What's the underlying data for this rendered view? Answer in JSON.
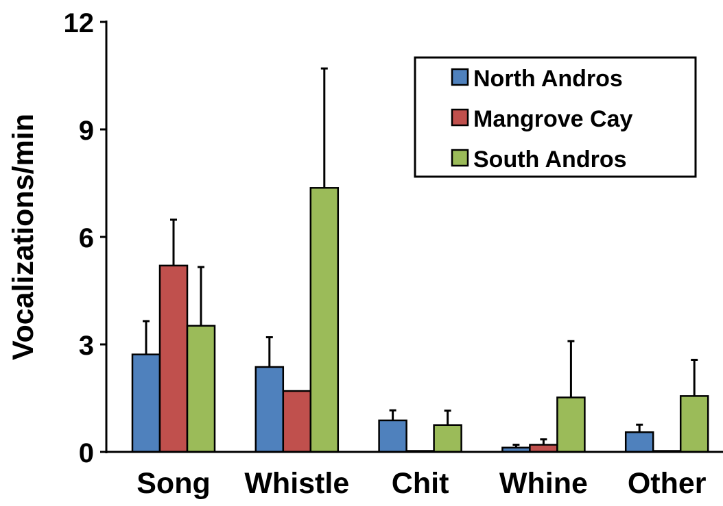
{
  "chart_data": {
    "type": "bar",
    "title": "",
    "xlabel": "",
    "ylabel": "Vocalizations/min",
    "ylim": [
      0,
      12
    ],
    "yticks": [
      0,
      3,
      6,
      9,
      12
    ],
    "categories": [
      "Song",
      "Whistle",
      "Chit",
      "Whine",
      "Other"
    ],
    "grid": false,
    "legend_position": "top-right",
    "error_bars": "upper",
    "series": [
      {
        "name": "North Andros",
        "color": "#4f81bd",
        "values": [
          2.72,
          2.37,
          0.88,
          0.12,
          0.55
        ],
        "errors": [
          0.93,
          0.83,
          0.28,
          0.08,
          0.21
        ]
      },
      {
        "name": "Mangrove Cay",
        "color": "#c0504d",
        "values": [
          5.2,
          1.7,
          0.0,
          0.2,
          0.0
        ],
        "errors": [
          1.28,
          0.0,
          0.0,
          0.15,
          0.0
        ]
      },
      {
        "name": "South Andros",
        "color": "#9bbb59",
        "values": [
          3.52,
          7.37,
          0.75,
          1.52,
          1.56
        ],
        "errors": [
          1.64,
          3.33,
          0.4,
          1.57,
          1.01
        ]
      }
    ]
  }
}
